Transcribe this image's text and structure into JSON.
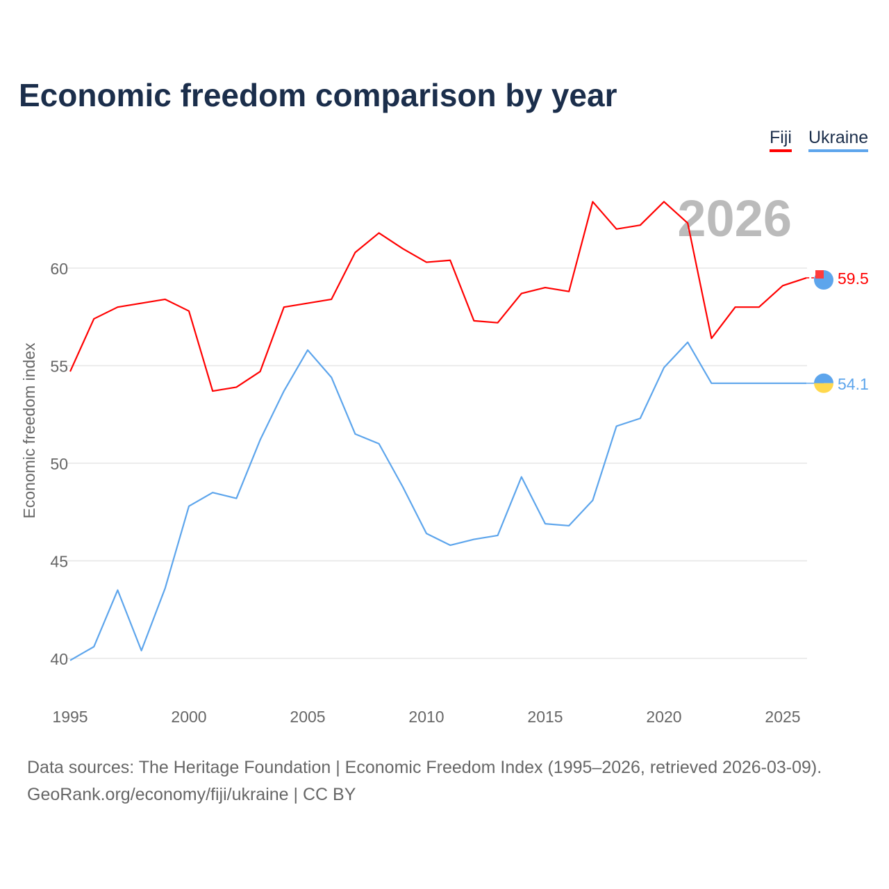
{
  "chart_data": {
    "type": "line",
    "title": "Economic freedom comparison by year",
    "xlabel": "",
    "ylabel": "Economic freedom index",
    "xlim": [
      1995,
      2026
    ],
    "ylim": [
      40,
      60
    ],
    "yticks": [
      40,
      45,
      50,
      55,
      60
    ],
    "xticks": [
      1995,
      2000,
      2005,
      2010,
      2015,
      2020,
      2025
    ],
    "grid": true,
    "legend_position": "top-right",
    "watermark_year": "2026",
    "x": [
      1995,
      1996,
      1997,
      1998,
      1999,
      2000,
      2001,
      2002,
      2003,
      2004,
      2005,
      2006,
      2007,
      2008,
      2009,
      2010,
      2011,
      2012,
      2013,
      2014,
      2015,
      2016,
      2017,
      2018,
      2019,
      2020,
      2021,
      2022,
      2023,
      2024,
      2025,
      2026
    ],
    "series": [
      {
        "name": "Fiji",
        "color": "#ff0000",
        "end_label": "59.5",
        "values": [
          54.7,
          57.4,
          58.0,
          58.2,
          58.4,
          57.8,
          53.7,
          53.9,
          54.7,
          58.0,
          58.2,
          58.4,
          60.8,
          61.8,
          61.0,
          60.3,
          60.4,
          57.3,
          57.2,
          58.7,
          59.0,
          58.8,
          63.4,
          62.0,
          62.2,
          63.4,
          62.3,
          56.4,
          58.0,
          58.0,
          59.1,
          59.5
        ]
      },
      {
        "name": "Ukraine",
        "color": "#5da5ec",
        "end_label": "54.1",
        "values": [
          39.9,
          40.6,
          43.5,
          40.4,
          43.6,
          47.8,
          48.5,
          48.2,
          51.2,
          53.7,
          55.8,
          54.4,
          51.5,
          51.0,
          48.8,
          46.4,
          45.8,
          46.1,
          46.3,
          49.3,
          46.9,
          46.8,
          48.1,
          51.9,
          52.3,
          54.9,
          56.2,
          54.1,
          54.1,
          54.1,
          54.1,
          54.1
        ]
      }
    ]
  },
  "source_line1": "Data sources: The Heritage Foundation | Economic Freedom Index (1995–2026, retrieved 2026-03-09).",
  "source_line2": "GeoRank.org/economy/fiji/ukraine | CC BY"
}
